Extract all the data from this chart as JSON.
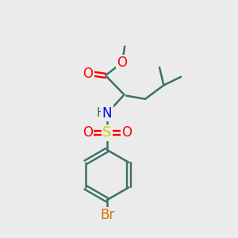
{
  "bg_color": "#ebebeb",
  "bond_color": "#3d7068",
  "bond_width": 1.8,
  "atom_colors": {
    "O": "#ff0000",
    "N": "#0000ee",
    "S": "#cccc00",
    "Br": "#cc7700",
    "H": "#555555",
    "C": "#000000"
  },
  "font_size": 11,
  "figsize": [
    3.0,
    3.0
  ],
  "dpi": 100,
  "xlim": [
    0,
    10
  ],
  "ylim": [
    0,
    10
  ]
}
